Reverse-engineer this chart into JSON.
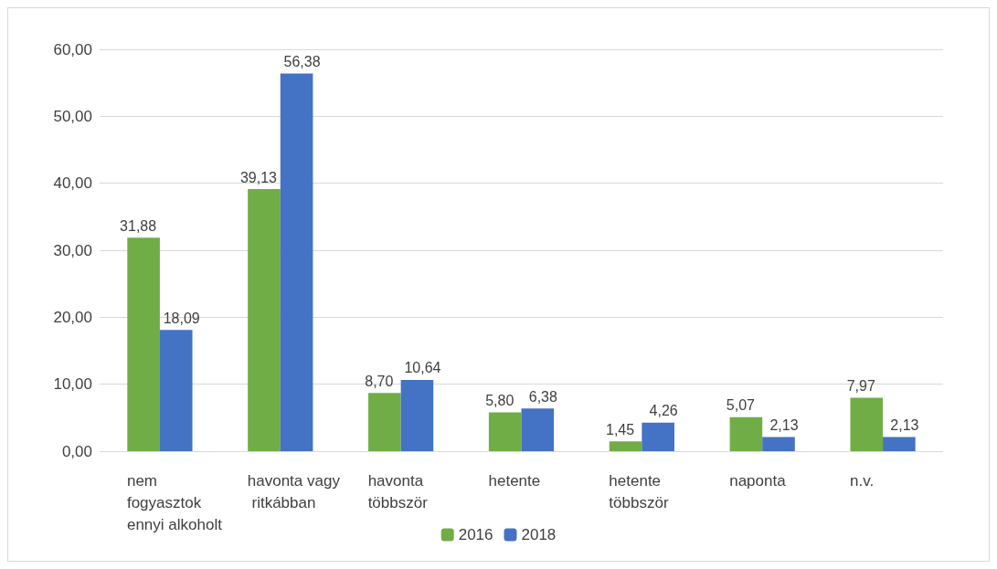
{
  "chart_data": {
    "type": "bar",
    "categories": [
      "nem fogyasztok ennyi alkoholt",
      "havonta vagy ritkábban",
      "havonta többször",
      "hetente",
      "hetente többször",
      "naponta",
      "n.v."
    ],
    "series": [
      {
        "name": "2016",
        "color": "#70ad47",
        "values": [
          31.88,
          39.13,
          8.7,
          5.8,
          1.45,
          5.07,
          7.97
        ],
        "value_labels": [
          "31,88",
          "39,13",
          "8,70",
          "5,80",
          "1,45",
          "5,07",
          "7,97"
        ]
      },
      {
        "name": "2018",
        "color": "#4472c4",
        "values": [
          18.09,
          56.38,
          10.64,
          6.38,
          4.26,
          2.13,
          2.13
        ],
        "value_labels": [
          "18,09",
          "56,38",
          "10,64",
          "6,38",
          "4,26",
          "2,13",
          "2,13"
        ]
      }
    ],
    "ylim": [
      0,
      60
    ],
    "yticks": [
      {
        "value": 0,
        "label": "0,00"
      },
      {
        "value": 10,
        "label": "10,00"
      },
      {
        "value": 20,
        "label": "20,00"
      },
      {
        "value": 30,
        "label": "30,00"
      },
      {
        "value": 40,
        "label": "40,00"
      },
      {
        "value": 50,
        "label": "50,00"
      },
      {
        "value": 60,
        "label": "60,00"
      }
    ],
    "grid": "y",
    "legend": "bottom"
  }
}
